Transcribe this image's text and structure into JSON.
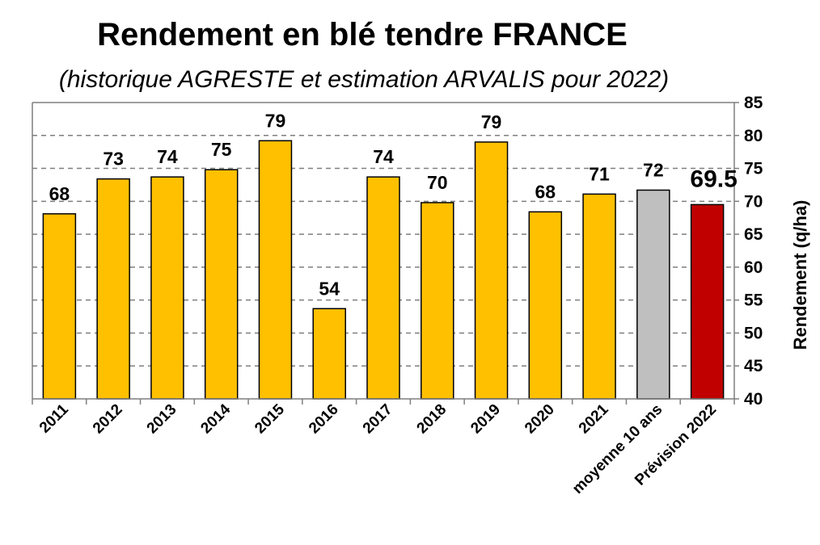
{
  "chart_data": {
    "type": "bar",
    "title": "Rendement en blé tendre FRANCE",
    "subtitle": "(historique AGRESTE et estimation ARVALIS pour 2022)",
    "ylabel": "Rendement (q/ha)",
    "xlabel": "",
    "ylim": [
      40,
      85
    ],
    "yticks": [
      40,
      45,
      50,
      55,
      60,
      65,
      70,
      75,
      80,
      85
    ],
    "grid": true,
    "y_axis_side": "right",
    "categories": [
      "2011",
      "2012",
      "2013",
      "2014",
      "2015",
      "2016",
      "2017",
      "2018",
      "2019",
      "2020",
      "2021",
      "moyenne 10 ans",
      "Prévision 2022"
    ],
    "values": [
      68.1,
      73.4,
      73.7,
      74.8,
      79.2,
      53.7,
      73.7,
      69.8,
      79.0,
      68.4,
      71.1,
      71.7,
      69.5
    ],
    "data_labels": [
      "68",
      "73",
      "74",
      "75",
      "79",
      "54",
      "74",
      "70",
      "79",
      "68",
      "71",
      "72",
      "69.5"
    ],
    "bar_colors": [
      "#FFC000",
      "#FFC000",
      "#FFC000",
      "#FFC000",
      "#FFC000",
      "#FFC000",
      "#FFC000",
      "#FFC000",
      "#FFC000",
      "#FFC000",
      "#FFC000",
      "#BFBFBF",
      "#C00000"
    ],
    "label_colors": [
      "#000000",
      "#000000",
      "#000000",
      "#000000",
      "#000000",
      "#000000",
      "#000000",
      "#000000",
      "#000000",
      "#000000",
      "#000000",
      "#000000",
      "#C00000"
    ],
    "highlight_index": 12
  }
}
